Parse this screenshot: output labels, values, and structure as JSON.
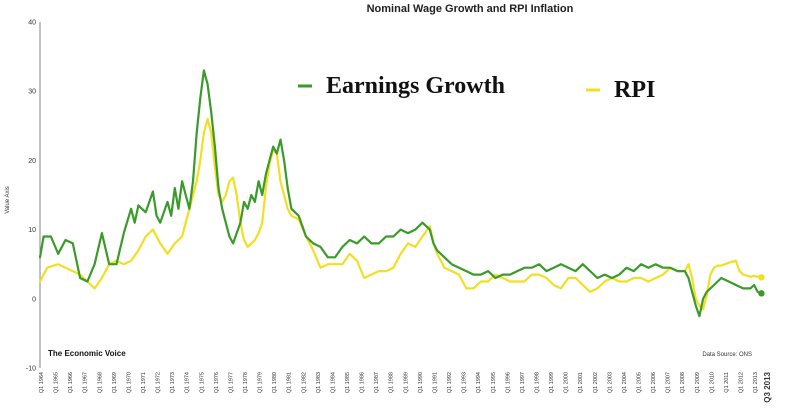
{
  "chart_data": {
    "type": "line",
    "title": "Nominal Wage Growth and RPI Inflation",
    "ylabel": "Value Axis",
    "ylim": [
      -10,
      40
    ],
    "yticks": [
      -10,
      0,
      10,
      20,
      30,
      40
    ],
    "grid": false,
    "legend_placement": "top",
    "x_labels": [
      "Q1 1964",
      "Q1 1965",
      "Q1 1966",
      "Q1 1967",
      "Q1 1968",
      "Q1 1969",
      "Q1 1970",
      "Q1 1971",
      "Q1 1972",
      "Q1 1973",
      "Q1 1974",
      "Q1 1975",
      "Q1 1976",
      "Q1 1977",
      "Q1 1978",
      "Q1 1979",
      "Q1 1980",
      "Q1 1981",
      "Q1 1982",
      "Q1 1983",
      "Q1 1984",
      "Q1 1985",
      "Q1 1986",
      "Q1 1987",
      "Q1 1988",
      "Q1 1989",
      "Q1 1990",
      "Q1 1991",
      "Q1 1992",
      "Q1 1993",
      "Q1 1994",
      "Q1 1995",
      "Q1 1996",
      "Q1 1997",
      "Q1 1998",
      "Q1 1999",
      "Q1 2000",
      "Q1 2001",
      "Q1 2002",
      "Q1 2003",
      "Q1 2004",
      "Q1 2005",
      "Q1 2006",
      "Q1 2007",
      "Q1 2008",
      "Q1 2009",
      "Q1 2010",
      "Q1 2011",
      "Q1 2012",
      "Q1 2013"
    ],
    "x_last_label": "Q3 2013",
    "series": [
      {
        "name": "Earnings Growth",
        "color": "#3a9a2a",
        "points": [
          [
            1964.0,
            6.0
          ],
          [
            1964.25,
            9.0
          ],
          [
            1964.75,
            9.0
          ],
          [
            1965.25,
            6.5
          ],
          [
            1965.75,
            8.5
          ],
          [
            1966.25,
            8.0
          ],
          [
            1966.75,
            3.0
          ],
          [
            1967.25,
            2.5
          ],
          [
            1967.75,
            5.0
          ],
          [
            1968.25,
            9.5
          ],
          [
            1968.75,
            5.0
          ],
          [
            1969.25,
            5.0
          ],
          [
            1969.75,
            9.5
          ],
          [
            1970.25,
            13.0
          ],
          [
            1970.5,
            11.0
          ],
          [
            1970.75,
            13.5
          ],
          [
            1971.25,
            12.5
          ],
          [
            1971.75,
            15.5
          ],
          [
            1972.0,
            12.0
          ],
          [
            1972.25,
            11.0
          ],
          [
            1972.75,
            14.0
          ],
          [
            1973.0,
            12.0
          ],
          [
            1973.25,
            16.0
          ],
          [
            1973.5,
            13.0
          ],
          [
            1973.75,
            17.0
          ],
          [
            1974.0,
            15.0
          ],
          [
            1974.25,
            13.0
          ],
          [
            1974.5,
            17.0
          ],
          [
            1974.75,
            24.0
          ],
          [
            1975.0,
            29.0
          ],
          [
            1975.25,
            33.0
          ],
          [
            1975.5,
            31.0
          ],
          [
            1975.75,
            27.0
          ],
          [
            1976.0,
            22.0
          ],
          [
            1976.25,
            16.0
          ],
          [
            1976.5,
            13.0
          ],
          [
            1976.75,
            11.0
          ],
          [
            1977.0,
            9.0
          ],
          [
            1977.25,
            8.0
          ],
          [
            1977.5,
            9.5
          ],
          [
            1977.75,
            11.0
          ],
          [
            1978.0,
            14.0
          ],
          [
            1978.25,
            13.0
          ],
          [
            1978.5,
            15.0
          ],
          [
            1978.75,
            14.0
          ],
          [
            1979.0,
            17.0
          ],
          [
            1979.25,
            15.0
          ],
          [
            1979.5,
            18.0
          ],
          [
            1979.75,
            20.0
          ],
          [
            1980.0,
            22.0
          ],
          [
            1980.25,
            21.0
          ],
          [
            1980.5,
            23.0
          ],
          [
            1980.75,
            20.0
          ],
          [
            1981.0,
            16.0
          ],
          [
            1981.25,
            13.0
          ],
          [
            1981.75,
            12.0
          ],
          [
            1982.25,
            9.0
          ],
          [
            1982.75,
            8.0
          ],
          [
            1983.25,
            7.5
          ],
          [
            1983.75,
            6.0
          ],
          [
            1984.25,
            6.0
          ],
          [
            1984.75,
            7.5
          ],
          [
            1985.25,
            8.5
          ],
          [
            1985.75,
            8.0
          ],
          [
            1986.25,
            9.0
          ],
          [
            1986.75,
            8.0
          ],
          [
            1987.25,
            8.0
          ],
          [
            1987.75,
            9.0
          ],
          [
            1988.25,
            9.0
          ],
          [
            1988.75,
            10.0
          ],
          [
            1989.25,
            9.5
          ],
          [
            1989.75,
            10.0
          ],
          [
            1990.25,
            11.0
          ],
          [
            1990.75,
            10.0
          ],
          [
            1991.0,
            8.0
          ],
          [
            1991.25,
            7.0
          ],
          [
            1991.75,
            6.0
          ],
          [
            1992.25,
            5.0
          ],
          [
            1992.75,
            4.5
          ],
          [
            1993.25,
            4.0
          ],
          [
            1993.75,
            3.5
          ],
          [
            1994.25,
            3.5
          ],
          [
            1994.75,
            4.0
          ],
          [
            1995.25,
            3.0
          ],
          [
            1995.75,
            3.5
          ],
          [
            1996.25,
            3.5
          ],
          [
            1996.75,
            4.0
          ],
          [
            1997.25,
            4.5
          ],
          [
            1997.75,
            4.5
          ],
          [
            1998.25,
            5.0
          ],
          [
            1998.75,
            4.0
          ],
          [
            1999.25,
            4.5
          ],
          [
            1999.75,
            5.0
          ],
          [
            2000.25,
            4.5
          ],
          [
            2000.75,
            4.0
          ],
          [
            2001.25,
            5.0
          ],
          [
            2001.75,
            4.0
          ],
          [
            2002.25,
            3.0
          ],
          [
            2002.75,
            3.5
          ],
          [
            2003.25,
            3.0
          ],
          [
            2003.75,
            3.5
          ],
          [
            2004.25,
            4.5
          ],
          [
            2004.75,
            4.0
          ],
          [
            2005.25,
            5.0
          ],
          [
            2005.75,
            4.5
          ],
          [
            2006.25,
            5.0
          ],
          [
            2006.75,
            4.5
          ],
          [
            2007.25,
            4.5
          ],
          [
            2007.75,
            4.0
          ],
          [
            2008.25,
            4.0
          ],
          [
            2008.5,
            3.0
          ],
          [
            2008.75,
            1.0
          ],
          [
            2009.0,
            -1.0
          ],
          [
            2009.25,
            -2.5
          ],
          [
            2009.5,
            0.0
          ],
          [
            2009.75,
            1.0
          ],
          [
            2010.25,
            2.0
          ],
          [
            2010.75,
            3.0
          ],
          [
            2011.25,
            2.5
          ],
          [
            2011.75,
            2.0
          ],
          [
            2012.25,
            1.5
          ],
          [
            2012.75,
            1.5
          ],
          [
            2013.0,
            2.0
          ],
          [
            2013.25,
            1.0
          ],
          [
            2013.5,
            0.8
          ]
        ]
      },
      {
        "name": "RPI",
        "color": "#f2df22",
        "points": [
          [
            1964.0,
            2.5
          ],
          [
            1964.5,
            4.5
          ],
          [
            1965.25,
            5.0
          ],
          [
            1965.75,
            4.5
          ],
          [
            1966.25,
            4.0
          ],
          [
            1966.75,
            3.5
          ],
          [
            1967.25,
            2.5
          ],
          [
            1967.75,
            1.5
          ],
          [
            1968.25,
            3.0
          ],
          [
            1968.75,
            5.0
          ],
          [
            1969.25,
            5.5
          ],
          [
            1969.75,
            5.0
          ],
          [
            1970.25,
            5.5
          ],
          [
            1970.75,
            7.0
          ],
          [
            1971.25,
            9.0
          ],
          [
            1971.75,
            10.0
          ],
          [
            1972.25,
            8.0
          ],
          [
            1972.75,
            6.5
          ],
          [
            1973.25,
            8.0
          ],
          [
            1973.75,
            9.0
          ],
          [
            1974.25,
            13.0
          ],
          [
            1974.75,
            17.0
          ],
          [
            1975.0,
            20.0
          ],
          [
            1975.25,
            24.0
          ],
          [
            1975.5,
            26.0
          ],
          [
            1975.75,
            24.0
          ],
          [
            1976.0,
            19.0
          ],
          [
            1976.25,
            15.0
          ],
          [
            1976.5,
            14.0
          ],
          [
            1976.75,
            15.0
          ],
          [
            1977.0,
            17.0
          ],
          [
            1977.25,
            17.5
          ],
          [
            1977.5,
            15.0
          ],
          [
            1977.75,
            11.0
          ],
          [
            1978.0,
            8.5
          ],
          [
            1978.25,
            7.5
          ],
          [
            1978.5,
            8.0
          ],
          [
            1978.75,
            8.5
          ],
          [
            1979.0,
            9.5
          ],
          [
            1979.25,
            11.0
          ],
          [
            1979.5,
            16.0
          ],
          [
            1979.75,
            19.5
          ],
          [
            1980.0,
            21.5
          ],
          [
            1980.25,
            21.0
          ],
          [
            1980.5,
            17.0
          ],
          [
            1980.75,
            15.0
          ],
          [
            1981.0,
            13.0
          ],
          [
            1981.25,
            12.0
          ],
          [
            1981.75,
            11.5
          ],
          [
            1982.25,
            9.0
          ],
          [
            1982.75,
            7.0
          ],
          [
            1983.25,
            4.5
          ],
          [
            1983.75,
            5.0
          ],
          [
            1984.25,
            5.0
          ],
          [
            1984.75,
            5.0
          ],
          [
            1985.25,
            6.5
          ],
          [
            1985.75,
            5.5
          ],
          [
            1986.25,
            3.0
          ],
          [
            1986.75,
            3.5
          ],
          [
            1987.25,
            4.0
          ],
          [
            1987.75,
            4.0
          ],
          [
            1988.25,
            4.5
          ],
          [
            1988.75,
            6.5
          ],
          [
            1989.25,
            8.0
          ],
          [
            1989.75,
            7.5
          ],
          [
            1990.25,
            9.0
          ],
          [
            1990.75,
            10.5
          ],
          [
            1991.0,
            8.0
          ],
          [
            1991.25,
            6.5
          ],
          [
            1991.75,
            4.5
          ],
          [
            1992.25,
            4.0
          ],
          [
            1992.75,
            3.5
          ],
          [
            1993.25,
            1.5
          ],
          [
            1993.75,
            1.5
          ],
          [
            1994.25,
            2.5
          ],
          [
            1994.75,
            2.5
          ],
          [
            1995.25,
            3.5
          ],
          [
            1995.75,
            3.0
          ],
          [
            1996.25,
            2.5
          ],
          [
            1996.75,
            2.5
          ],
          [
            1997.25,
            2.5
          ],
          [
            1997.75,
            3.5
          ],
          [
            1998.25,
            3.5
          ],
          [
            1998.75,
            3.0
          ],
          [
            1999.25,
            2.0
          ],
          [
            1999.75,
            1.5
          ],
          [
            2000.25,
            3.0
          ],
          [
            2000.75,
            3.0
          ],
          [
            2001.25,
            2.0
          ],
          [
            2001.75,
            1.0
          ],
          [
            2002.25,
            1.5
          ],
          [
            2002.75,
            2.5
          ],
          [
            2003.25,
            3.0
          ],
          [
            2003.75,
            2.5
          ],
          [
            2004.25,
            2.5
          ],
          [
            2004.75,
            3.0
          ],
          [
            2005.25,
            3.0
          ],
          [
            2005.75,
            2.5
          ],
          [
            2006.25,
            3.0
          ],
          [
            2006.75,
            3.5
          ],
          [
            2007.25,
            4.5
          ],
          [
            2007.75,
            4.0
          ],
          [
            2008.25,
            4.0
          ],
          [
            2008.5,
            5.0
          ],
          [
            2008.75,
            3.0
          ],
          [
            2009.0,
            0.0
          ],
          [
            2009.25,
            -1.0
          ],
          [
            2009.5,
            -1.5
          ],
          [
            2009.75,
            0.5
          ],
          [
            2010.0,
            3.5
          ],
          [
            2010.25,
            4.5
          ],
          [
            2010.5,
            4.8
          ],
          [
            2010.75,
            4.8
          ],
          [
            2011.25,
            5.2
          ],
          [
            2011.75,
            5.5
          ],
          [
            2012.0,
            4.0
          ],
          [
            2012.25,
            3.5
          ],
          [
            2012.75,
            3.2
          ],
          [
            2013.0,
            3.3
          ],
          [
            2013.25,
            3.2
          ],
          [
            2013.5,
            3.1
          ]
        ]
      }
    ]
  },
  "branding": "The Economic Voice",
  "source": "Data Source: ONS"
}
